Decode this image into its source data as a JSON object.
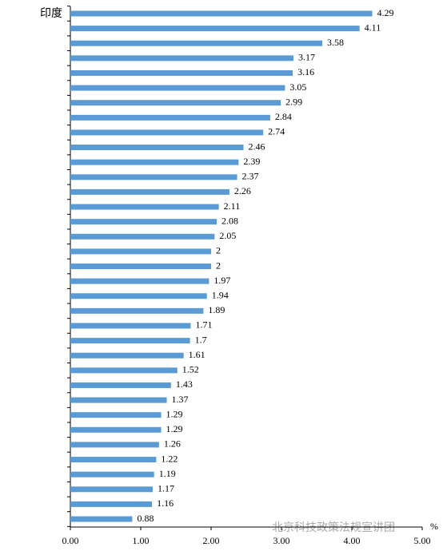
{
  "chart_data": {
    "type": "bar",
    "orientation": "horizontal",
    "categories": [
      "印度",
      null,
      null,
      null,
      null,
      null,
      null,
      null,
      null,
      null,
      null,
      null,
      null,
      null,
      null,
      null,
      null,
      null,
      null,
      null,
      null,
      null,
      null,
      null,
      null,
      null,
      null,
      null,
      null,
      null,
      null,
      null,
      null,
      null,
      null
    ],
    "values": [
      4.29,
      4.11,
      3.58,
      3.17,
      3.16,
      3.05,
      2.99,
      2.84,
      2.74,
      2.46,
      2.39,
      2.37,
      2.26,
      2.11,
      2.08,
      2.05,
      2,
      2,
      1.97,
      1.94,
      1.89,
      1.71,
      1.7,
      1.61,
      1.52,
      1.43,
      1.37,
      1.29,
      1.29,
      1.26,
      1.22,
      1.19,
      1.17,
      1.16,
      0.88
    ],
    "color": "#5b9bd5",
    "xlim": [
      0,
      5
    ],
    "xticks": [
      {
        "value": 0,
        "label": "0.00"
      },
      {
        "value": 1,
        "label": "1.00"
      },
      {
        "value": 2,
        "label": "2.00"
      },
      {
        "value": 3,
        "label": "3.00"
      },
      {
        "value": 4,
        "label": "4.00"
      },
      {
        "value": 5,
        "label": "5.00"
      }
    ],
    "x_unit": "%",
    "watermark": "北京科技政策法规宣讲团"
  }
}
